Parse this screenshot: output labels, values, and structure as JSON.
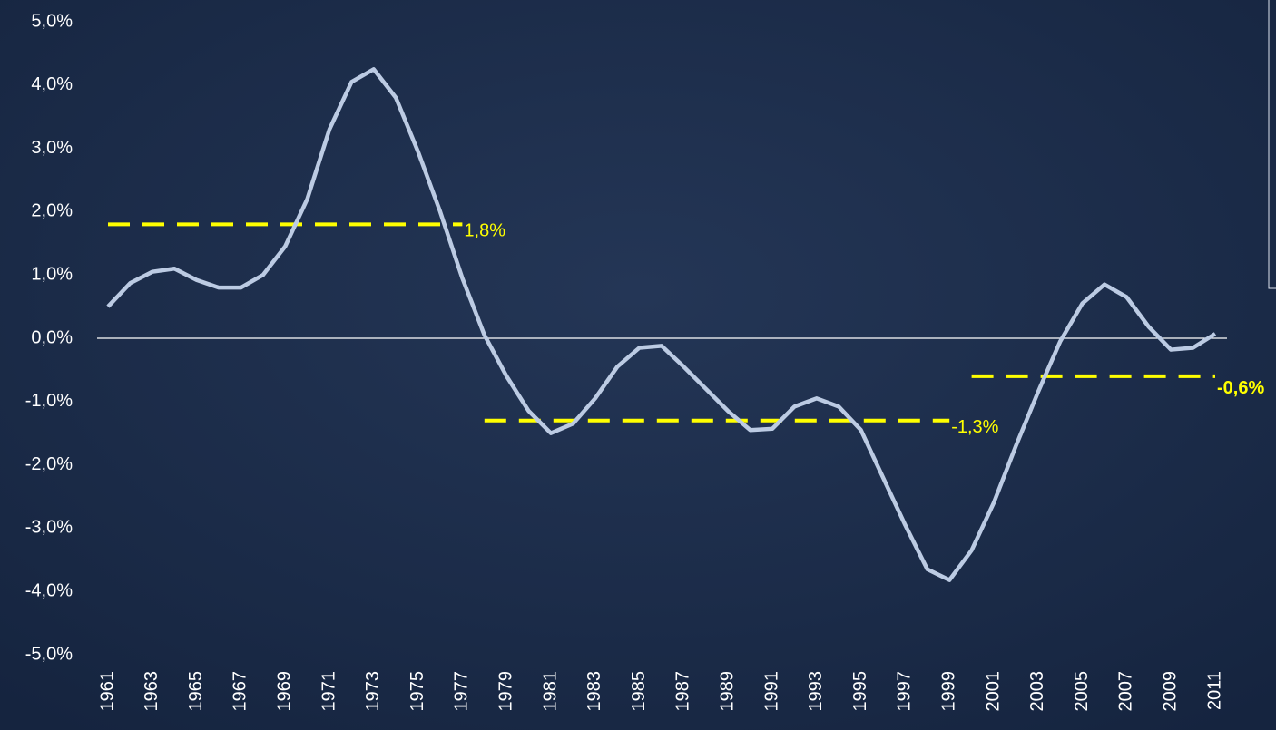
{
  "chart_data": {
    "type": "line",
    "x": [
      1961,
      1962,
      1963,
      1964,
      1965,
      1966,
      1967,
      1968,
      1969,
      1970,
      1971,
      1972,
      1973,
      1974,
      1975,
      1976,
      1977,
      1978,
      1979,
      1980,
      1981,
      1982,
      1983,
      1984,
      1985,
      1986,
      1987,
      1988,
      1989,
      1990,
      1991,
      1992,
      1993,
      1994,
      1995,
      1996,
      1997,
      1998,
      1999,
      2000,
      2001,
      2002,
      2003,
      2004,
      2005,
      2006,
      2007,
      2008,
      2009,
      2010,
      2011
    ],
    "series": [
      {
        "color": "#bccbe3",
        "values": [
          0.5,
          0.87,
          1.05,
          1.1,
          0.92,
          0.8,
          0.8,
          1.0,
          1.45,
          2.2,
          3.3,
          4.05,
          4.25,
          3.8,
          2.95,
          2.0,
          0.95,
          0.05,
          -0.6,
          -1.15,
          -1.5,
          -1.35,
          -0.95,
          -0.45,
          -0.15,
          -0.12,
          -0.45,
          -0.8,
          -1.15,
          -1.45,
          -1.43,
          -1.08,
          -0.95,
          -1.08,
          -1.45,
          -2.2,
          -2.95,
          -3.65,
          -3.82,
          -3.35,
          -2.6,
          -1.7,
          -0.85,
          -0.05,
          0.55,
          0.85,
          0.65,
          0.18,
          -0.18,
          -0.15,
          0.07
        ]
      }
    ],
    "averages": [
      {
        "x_start": 1961,
        "x_end": 1977,
        "value": 1.8,
        "label": "1,8%",
        "color": "#ffff00"
      },
      {
        "x_start": 1978,
        "x_end": 1999,
        "value": -1.3,
        "label": "-1,3%",
        "color": "#ffff00"
      },
      {
        "x_start": 2000,
        "x_end": 2011,
        "value": -0.6,
        "label": "-0,6%",
        "color": "#ffff00",
        "bold": true
      }
    ],
    "xlim": [
      1961,
      2011
    ],
    "xticks": [
      1961,
      1963,
      1965,
      1967,
      1969,
      1971,
      1973,
      1975,
      1977,
      1979,
      1981,
      1983,
      1985,
      1987,
      1989,
      1991,
      1993,
      1995,
      1997,
      1999,
      2001,
      2003,
      2005,
      2007,
      2009,
      2011
    ],
    "ylim": [
      -5,
      5
    ],
    "yticks": [
      {
        "value": -5,
        "label": "-5,0%"
      },
      {
        "value": -4,
        "label": "-4,0%"
      },
      {
        "value": -3,
        "label": "-3,0%"
      },
      {
        "value": -2,
        "label": "-2,0%"
      },
      {
        "value": -1,
        "label": "-1,0%"
      },
      {
        "value": 0,
        "label": "0,0%"
      },
      {
        "value": 1,
        "label": "1,0%"
      },
      {
        "value": 2,
        "label": "2,0%"
      },
      {
        "value": 3,
        "label": "3,0%"
      },
      {
        "value": 4,
        "label": "4,0%"
      },
      {
        "value": 5,
        "label": "5,0%"
      }
    ]
  }
}
